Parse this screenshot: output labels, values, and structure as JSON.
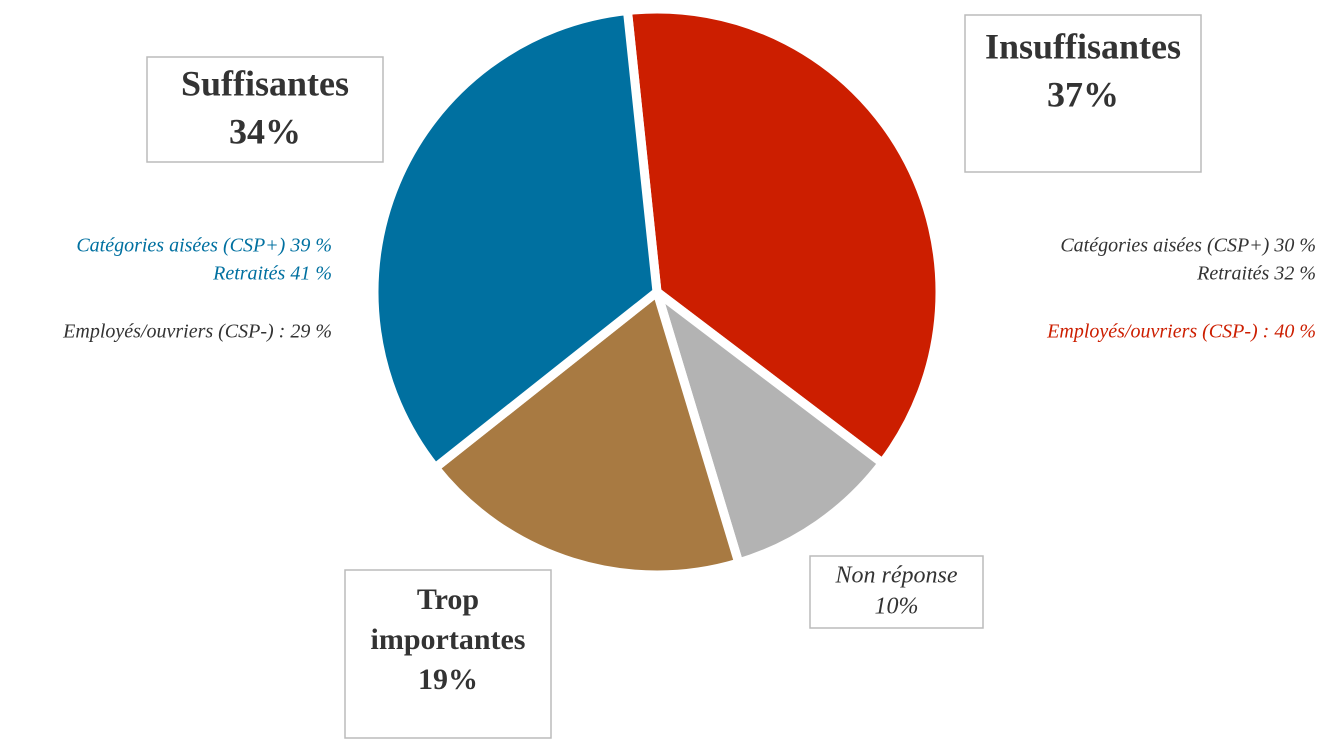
{
  "chart_data": {
    "type": "pie",
    "categories": [
      "Insuffisantes",
      "Non réponse",
      "Trop importantes",
      "Suffisantes"
    ],
    "values": [
      37,
      10,
      19,
      34
    ],
    "value_labels": [
      "37%",
      "10%",
      "19%",
      "34%"
    ],
    "colors": [
      "#cc1e00",
      "#b3b3b3",
      "#a87a42",
      "#0070a0"
    ],
    "annotations": [
      {
        "text": "Catégories aisées (CSP+) 39 %",
        "color": "#0070a0"
      },
      {
        "text": "Retraités 41 %",
        "color": "#0070a0"
      },
      {
        "text": "Employés/ouvriers (CSP-) : 29 %",
        "color": "#333333"
      },
      {
        "text": "Catégories aisées (CSP+) 30 %",
        "color": "#333333"
      },
      {
        "text": "Retraités 32 %",
        "color": "#333333"
      },
      {
        "text": "Employés/ouvriers (CSP-) : 40 %",
        "color": "#cc1e00"
      }
    ]
  }
}
